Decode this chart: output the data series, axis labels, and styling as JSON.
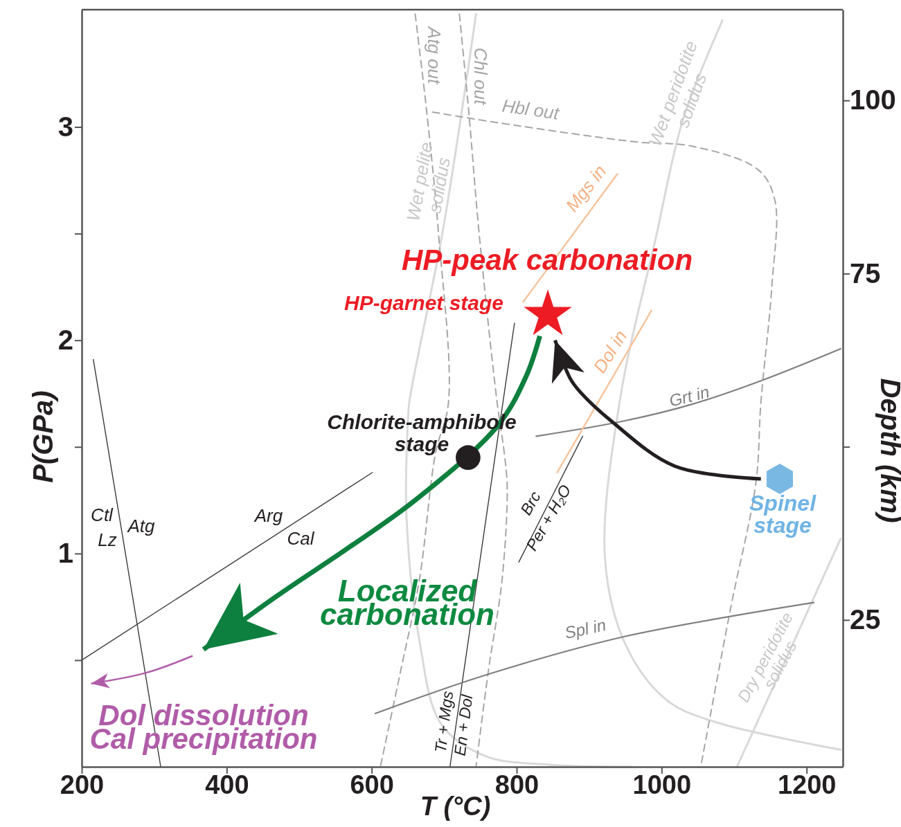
{
  "chart_data": {
    "type": "line",
    "xlabel": "T (°C)",
    "ylabel": "P(GPa)",
    "y2label": "Depth (km)",
    "xlim": [
      200,
      1250
    ],
    "xticks": [
      200,
      400,
      600,
      800,
      1000,
      1200
    ],
    "ylim": [
      0,
      3.55
    ],
    "yticks": [
      {
        "value": 0.5,
        "label": null
      },
      1,
      {
        "value": 1.5,
        "label": null
      },
      2,
      {
        "value": 2.5,
        "label": null
      },
      3
    ],
    "y2lim": [
      3.8,
      113.1
    ],
    "y2ticks": [
      25,
      {
        "value": 50,
        "label": null
      },
      75,
      100
    ],
    "series": [
      {
        "color": "#d9d9d9",
        "x": [
          744,
          698,
          652,
          650,
          648,
          666,
          696,
          757,
          844,
          959
        ],
        "values": [
          3.53,
          2.51,
          1.71,
          1.62,
          1.18,
          0.59,
          0.2,
          0.05,
          0.01,
          0
        ]
      },
      {
        "color": "#d9d9d9",
        "x": [
          1084,
          1030,
          992,
          942,
          922,
          952,
          1008,
          1074,
          1247
        ],
        "values": [
          3.5,
          3.04,
          2.48,
          1.71,
          0.97,
          0.56,
          0.31,
          0.21,
          0.08
        ]
      },
      {
        "color": "#d9d9d9",
        "x": [
          1247,
          1104
        ],
        "values": [
          1.07,
          0
        ]
      },
      {
        "color": "#a6a6a6",
        "line_style": "dashed",
        "x": [
          660,
          676,
          692,
          706,
          688,
          666,
          640,
          612
        ],
        "values": [
          3.53,
          3.07,
          2.51,
          1.71,
          1.47,
          0.88,
          0.45,
          0
        ]
      },
      {
        "color": "#a6a6a6",
        "line_style": "dashed",
        "x": [
          721,
          734,
          748,
          773,
          783,
          787,
          780,
          761,
          744
        ],
        "values": [
          3.53,
          3.07,
          2.51,
          1.71,
          1.47,
          1.31,
          0.88,
          0.45,
          0
        ]
      },
      {
        "color": "#a6a6a6",
        "line_style": "dashed",
        "x": [
          684,
          774,
          965,
          1042,
          1133,
          1156,
          1152,
          1137,
          1130,
          1095,
          1054
        ],
        "values": [
          3.07,
          3.02,
          2.93,
          2.91,
          2.8,
          2.66,
          2.25,
          1.71,
          1.33,
          0.74,
          0
        ]
      },
      {
        "color": "#3a3a3a",
        "x": [
          216,
          309
        ],
        "values": [
          1.91,
          0
        ]
      },
      {
        "color": "#3a3a3a",
        "x": [
          200,
          601
        ],
        "values": [
          0.5,
          1.38
        ]
      },
      {
        "color": "#3a3a3a",
        "x": [
          797,
          708
        ],
        "values": [
          2.08,
          0
        ]
      },
      {
        "color": "#3a3a3a",
        "x": [
          891,
          803
        ],
        "values": [
          1.55,
          0.96
        ]
      },
      {
        "color": "#808080",
        "x": [
          827,
          946,
          1042,
          1137,
          1247
        ],
        "values": [
          1.55,
          1.62,
          1.7,
          1.81,
          1.96
        ]
      },
      {
        "color": "#808080",
        "x": [
          605,
          757,
          948,
          1210
        ],
        "values": [
          0.25,
          0.43,
          0.61,
          0.77
        ]
      },
      {
        "color": "#f7c49c",
        "x": [
          809,
          939
        ],
        "values": [
          2.18,
          2.78
        ]
      },
      {
        "color": "#f7c49c",
        "x": [
          856,
          986
        ],
        "values": [
          1.38,
          2.14
        ]
      },
      {
        "color": "#0d7f3e",
        "x": [
          832,
          813,
          774,
          660,
          565,
          469,
          368
        ],
        "values": [
          2.02,
          1.83,
          1.6,
          1.25,
          1.02,
          0.8,
          0.55
        ]
      },
      {
        "color": "#b05ca8",
        "x": [
          353,
          288,
          213
        ],
        "values": [
          0.52,
          0.44,
          0.39
        ]
      },
      {
        "color": "#231f20",
        "x": [
          1137,
          1018,
          931,
          887,
          874,
          853
        ],
        "values": [
          1.35,
          1.41,
          1.62,
          1.76,
          1.82,
          2.0
        ]
      },
      {
        "type": "scatter",
        "marker": "star",
        "color": "#ed1c24",
        "x": [
          843
        ],
        "values": [
          2.12
        ]
      },
      {
        "type": "scatter",
        "marker": "circle",
        "color": "#231f20",
        "x": [
          733
        ],
        "values": [
          1.45
        ]
      },
      {
        "type": "scatter",
        "color": "#7ab8e4",
        "x": [
          1163
        ],
        "values": [
          1.35
        ]
      }
    ],
    "annotations": [
      "Ctl",
      "Lz",
      "Atg",
      "Arg",
      "Cal",
      "Tr + Mgs",
      "En + Dol",
      "Brc",
      "Per + H₂O",
      "Grt in",
      "Spl in",
      "Mgs in",
      "Dol in",
      "Atg out",
      "Chl out",
      "Hbl out",
      "Wet pelite solidus",
      "Wet peridotite solidus",
      "Dry peridotite solidus",
      "HP-peak carbonation",
      "HP-garnet stage",
      "Chlorite-amphibole stage",
      "Localized carbonation",
      "Dol dissolution Cal precipitation",
      "Spinel stage"
    ]
  }
}
